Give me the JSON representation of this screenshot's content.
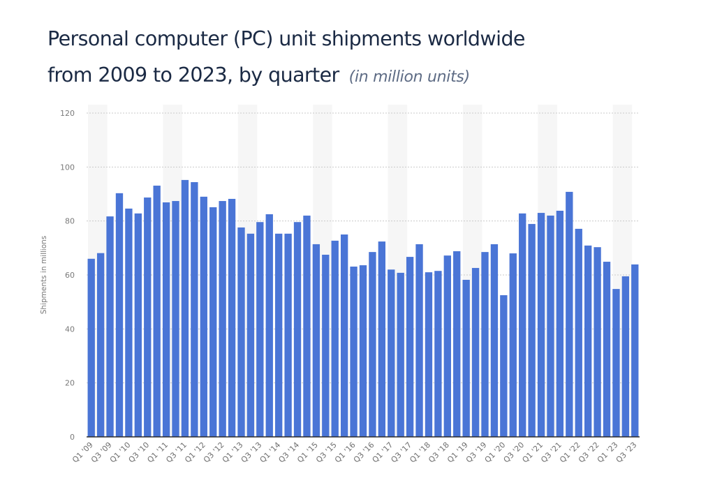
{
  "title": {
    "main_line1": "Personal computer (PC) unit shipments worldwide",
    "main_line2": "from 2009 to 2023, by quarter",
    "unit_note": "(in million units)"
  },
  "chart_data": {
    "type": "bar",
    "title": "Personal computer (PC) unit shipments worldwide from 2009 to 2023, by quarter",
    "subtitle": "(in million units)",
    "xlabel": "",
    "ylabel": "Shipments in millions",
    "ylim": [
      0,
      120
    ],
    "yticks": [
      0,
      20,
      40,
      60,
      80,
      100,
      120
    ],
    "grid": true,
    "bar_color": "#4a75d6",
    "categories": [
      "Q1 '09",
      "Q2 '09",
      "Q3 '09",
      "Q4 '09",
      "Q1 '10",
      "Q2 '10",
      "Q3 '10",
      "Q4 '10",
      "Q1 '11",
      "Q2 '11",
      "Q3 '11",
      "Q4 '11",
      "Q1 '12",
      "Q2 '12",
      "Q3 '12",
      "Q4 '12",
      "Q1 '13",
      "Q2 '13",
      "Q3 '13",
      "Q4 '13",
      "Q1 '14",
      "Q2 '14",
      "Q3 '14",
      "Q4 '14",
      "Q1 '15",
      "Q2 '15",
      "Q3 '15",
      "Q4 '15",
      "Q1 '16",
      "Q2 '16",
      "Q3 '16",
      "Q4 '16",
      "Q1 '17",
      "Q2 '17",
      "Q3 '17",
      "Q4 '17",
      "Q1 '18",
      "Q2 '18",
      "Q3 '18",
      "Q4 '18",
      "Q1 '19",
      "Q2 '19",
      "Q3 '19",
      "Q4 '19",
      "Q1 '20",
      "Q2 '20",
      "Q3 '20",
      "Q4 '20",
      "Q1 '21",
      "Q2 '21",
      "Q3 '21",
      "Q4 '21",
      "Q1 '22",
      "Q2 '22",
      "Q3 '22",
      "Q4 '22",
      "Q1 '23",
      "Q2 '23",
      "Q3 '23"
    ],
    "visible_x_tick_labels": [
      "Q1 '09",
      "Q3 '09",
      "Q1 '10",
      "Q3 '10",
      "Q1 '11",
      "Q3 '11",
      "Q1 '12",
      "Q3 '12",
      "Q1 '13",
      "Q3 '13",
      "Q1 '14",
      "Q3 '14",
      "Q1 '15",
      "Q3 '15",
      "Q1 '16",
      "Q3 '16",
      "Q1 '17",
      "Q3 '17",
      "Q1 '18",
      "Q3 '18",
      "Q1 '19",
      "Q3 '19",
      "Q1 '20",
      "Q3 '20",
      "Q1 '21",
      "Q3 '21",
      "Q1 '22",
      "Q3 '22",
      "Q1 '23",
      "Q3 '23"
    ],
    "series": [
      {
        "name": "Shipments in millions",
        "values": [
          66,
          68.1,
          81.7,
          90.3,
          84.6,
          82.8,
          88.7,
          93.1,
          86.9,
          87.4,
          95.2,
          94.4,
          89,
          85.1,
          87.4,
          88.2,
          77.6,
          75.3,
          79.6,
          82.5,
          75.3,
          75.3,
          79.6,
          82,
          71.4,
          67.5,
          72.7,
          75,
          63.1,
          63.6,
          68.5,
          72.4,
          62,
          60.8,
          66.7,
          71.4,
          61,
          61.5,
          67.2,
          68.8,
          58.2,
          62.6,
          68.5,
          71.4,
          52.5,
          68,
          82.8,
          78.9,
          83,
          82,
          83.8,
          90.8,
          77.1,
          70.9,
          70.3,
          64.9,
          54.8,
          59.5,
          63.9
        ]
      }
    ]
  }
}
